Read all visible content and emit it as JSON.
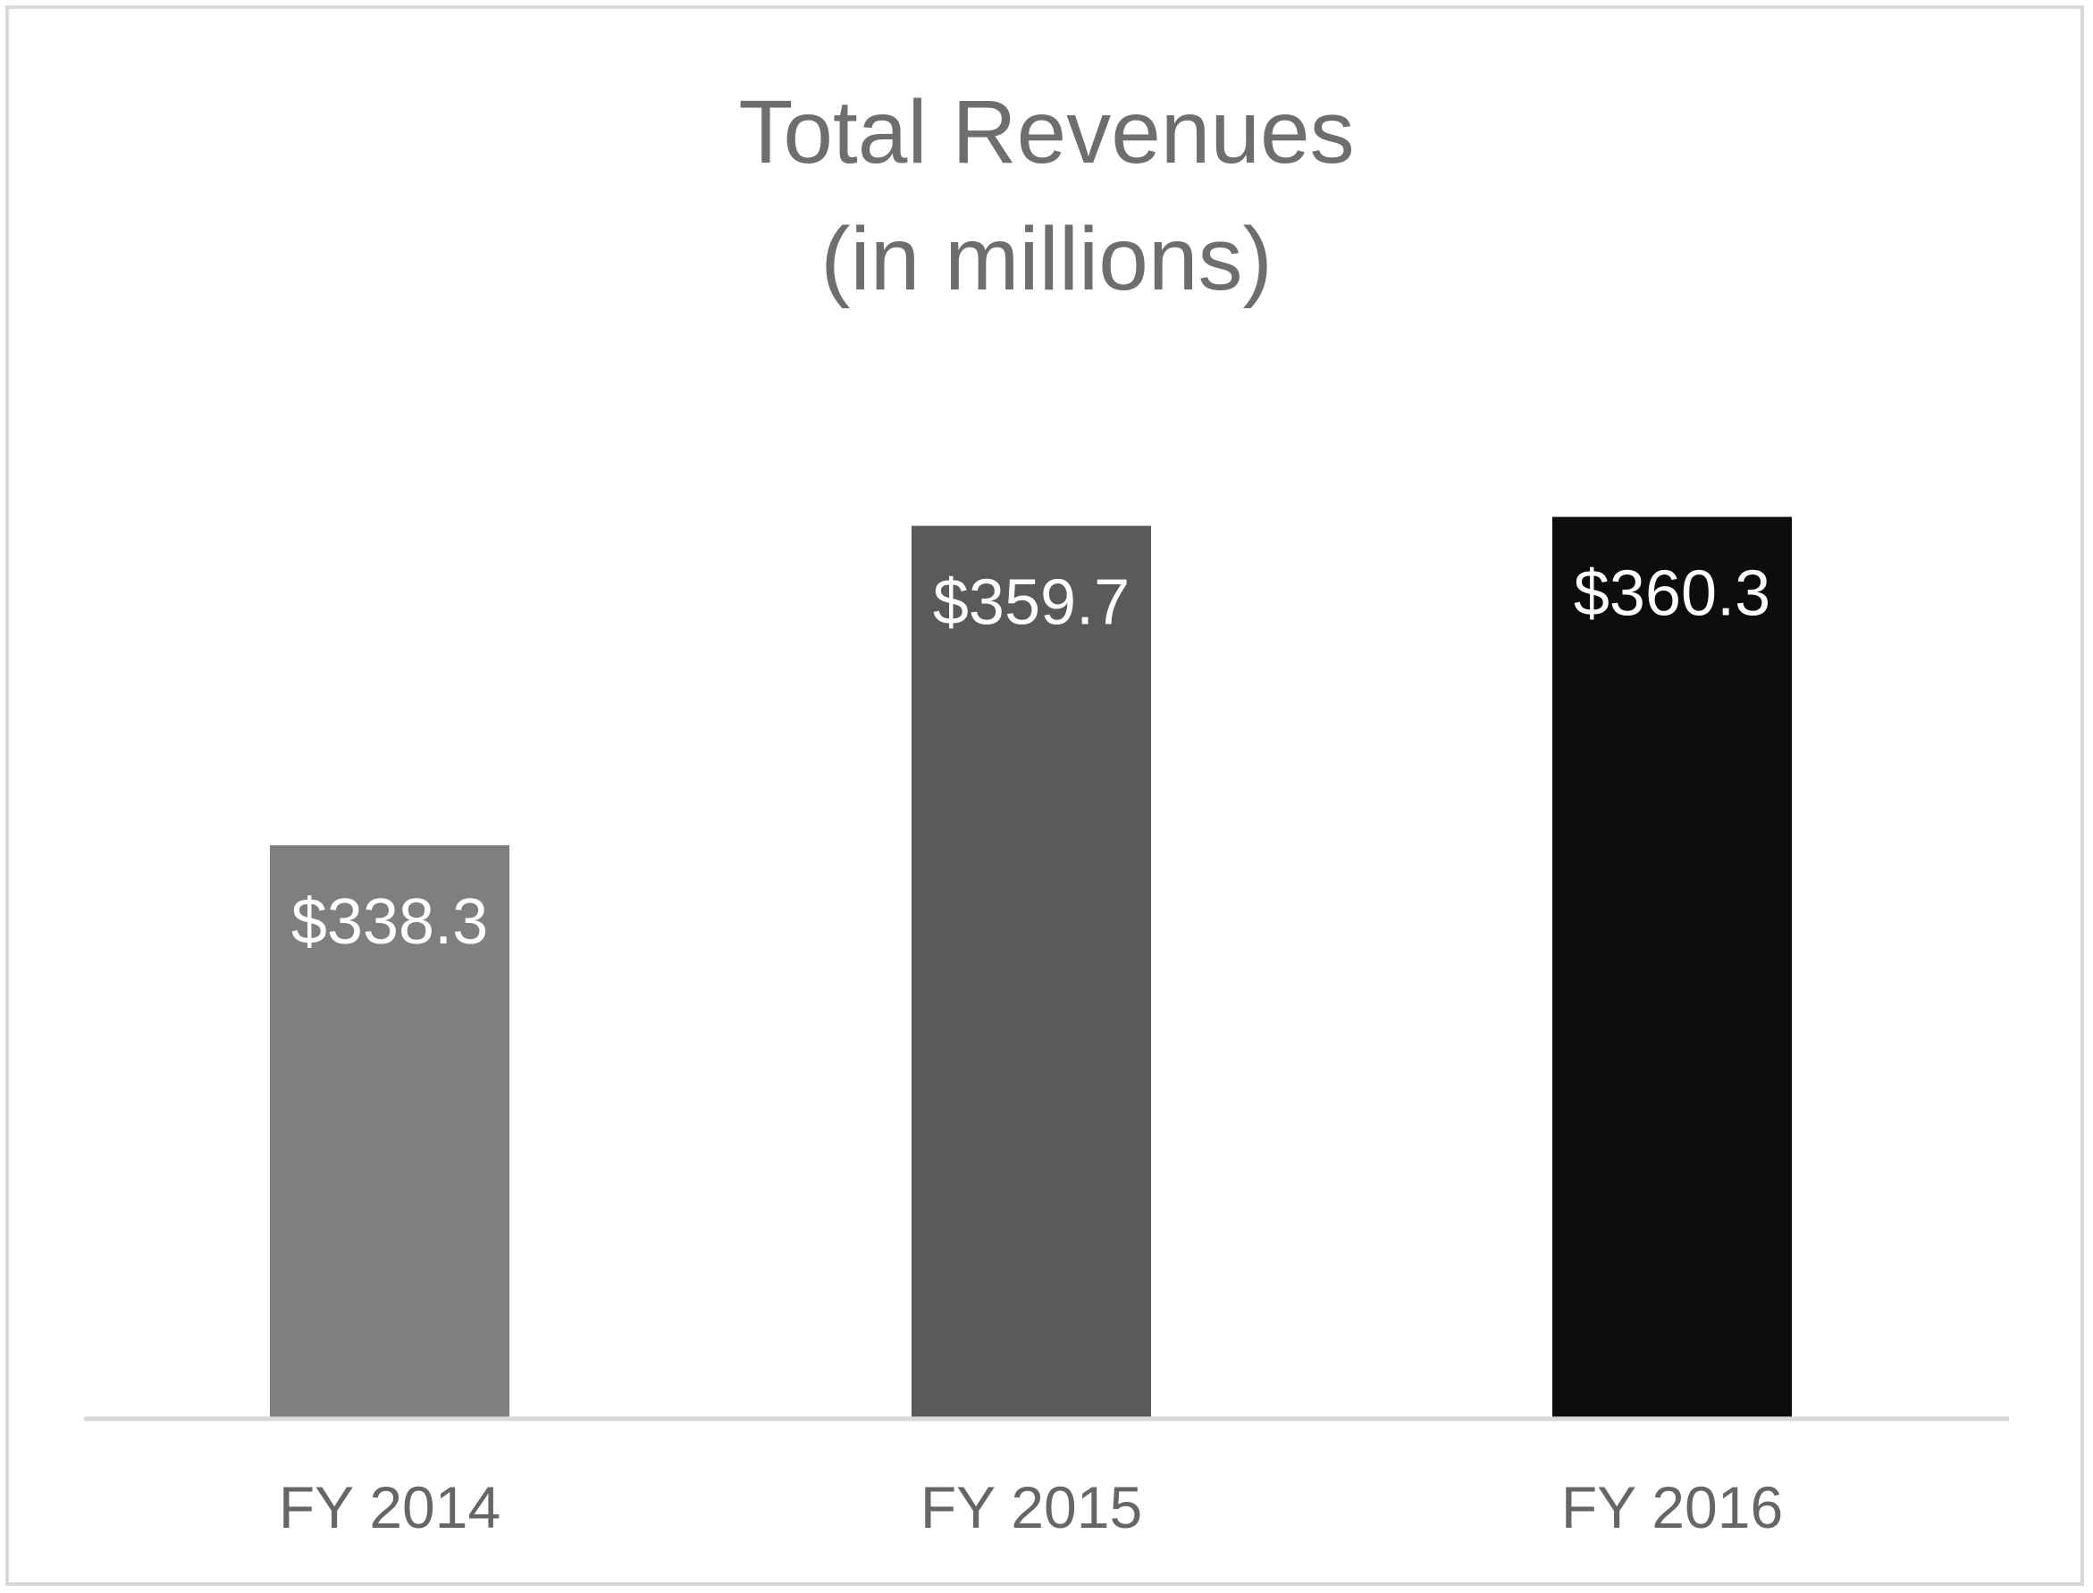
{
  "chart_data": {
    "type": "bar",
    "title": "Total Revenues",
    "subtitle": "(in millions)",
    "categories": [
      "FY 2014",
      "FY 2015",
      "FY 2016"
    ],
    "values": [
      338.3,
      359.7,
      360.3
    ],
    "value_labels": [
      "$338.3",
      "$359.7",
      "$360.3"
    ],
    "bar_colors": [
      "#7f7f7f",
      "#595a59",
      "#0c0e0c"
    ],
    "ylim": [
      300,
      365
    ],
    "xlabel": "",
    "ylabel": "",
    "grid": false,
    "legend": "none"
  }
}
